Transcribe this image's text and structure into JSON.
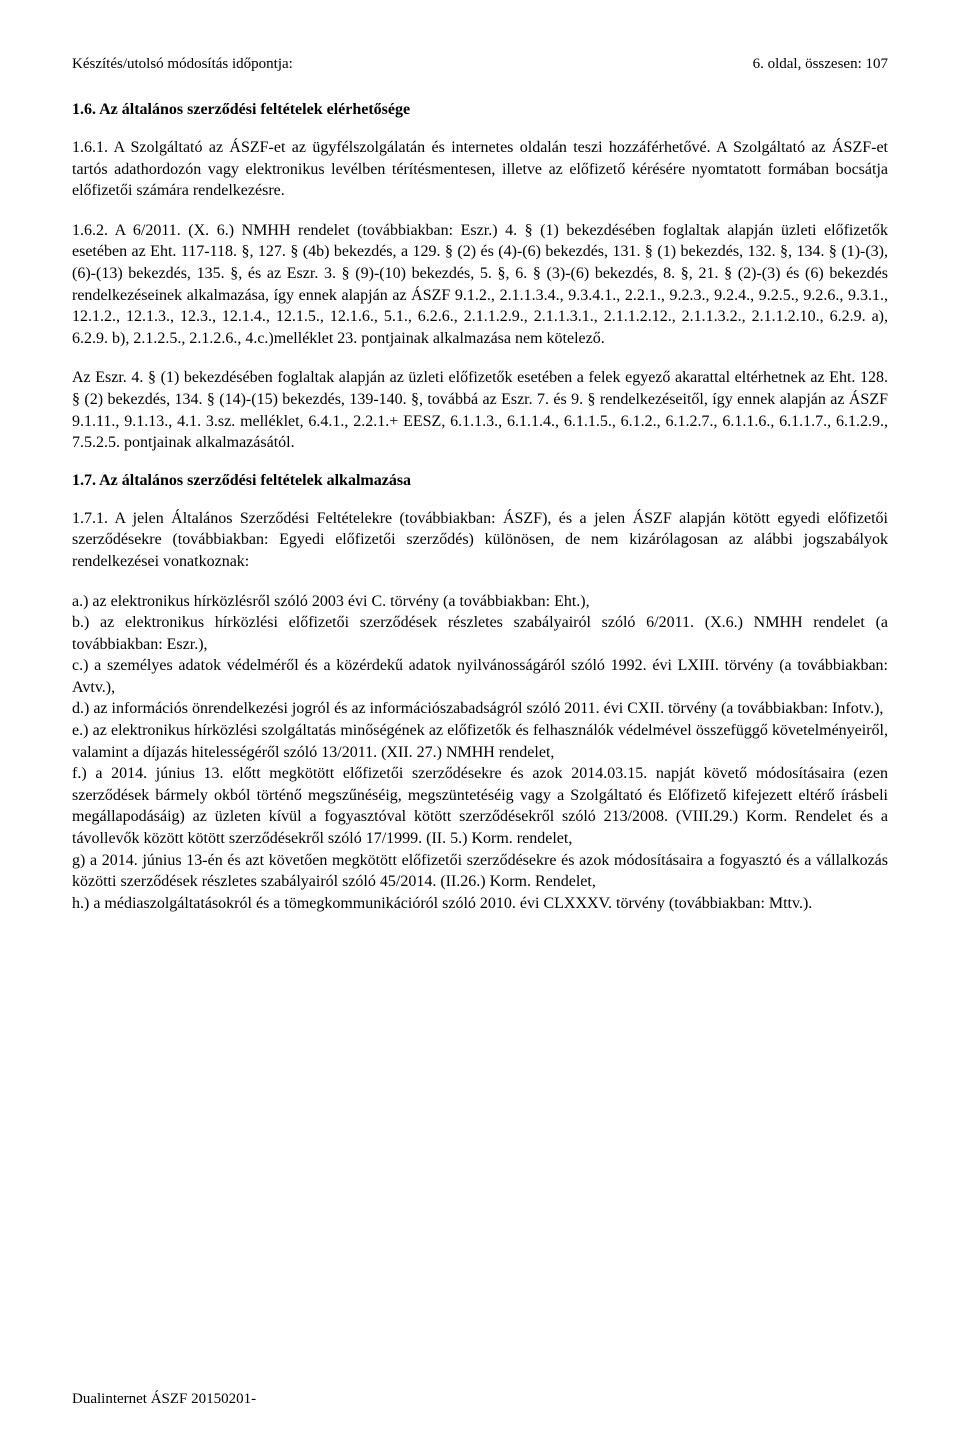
{
  "header": {
    "left": "Készítés/utolsó módosítás időpontja:",
    "right": "6. oldal, összesen: 107"
  },
  "s16": {
    "title": "1.6. Az általános szerződési feltételek elérhetősége",
    "p1": "1.6.1. A Szolgáltató az ÁSZF-et az ügyfélszolgálatán és internetes oldalán teszi hozzáférhetővé. A Szolgáltató az ÁSZF-et tartós adathordozón vagy elektronikus levélben térítésmentesen, illetve az előfizető kérésére nyomtatott formában bocsátja előfizetői számára rendelkezésre.",
    "p2": "1.6.2. A 6/2011. (X. 6.) NMHH rendelet (továbbiakban: Eszr.) 4. § (1) bekezdésében foglaltak alapján üzleti előfizetők esetében az Eht. 117-118. §, 127. § (4b) bekezdés, a 129. § (2) és (4)-(6) bekezdés, 131. § (1) bekezdés, 132. §, 134. § (1)-(3), (6)-(13) bekezdés, 135. §, és az Eszr. 3. § (9)-(10) bekezdés, 5. §, 6. § (3)-(6) bekezdés, 8. §, 21. § (2)-(3) és (6) bekezdés rendelkezéseinek alkalmazása, így ennek alapján az ÁSZF 9.1.2., 2.1.1.3.4., 9.3.4.1., 2.2.1., 9.2.3., 9.2.4., 9.2.5., 9.2.6., 9.3.1., 12.1.2., 12.1.3., 12.3., 12.1.4., 12.1.5., 12.1.6., 5.1., 6.2.6., 2.1.1.2.9., 2.1.1.3.1., 2.1.1.2.12., 2.1.1.3.2., 2.1.1.2.10., 6.2.9. a), 6.2.9. b), 2.1.2.5., 2.1.2.6., 4.c.)melléklet 23. pontjainak alkalmazása  nem kötelező.",
    "p3": "Az Eszr. 4. § (1) bekezdésében foglaltak alapján az üzleti előfizetők esetében a felek egyező akarattal eltérhetnek az Eht. 128. § (2) bekezdés, 134. § (14)-(15) bekezdés, 139-140. §, továbbá az Eszr. 7. és 9. § rendelkezéseitől, így ennek alapján az ÁSZF 9.1.11., 9.1.13., 4.1. 3.sz. melléklet, 6.4.1., 2.2.1.+ EESZ, 6.1.1.3., 6.1.1.4., 6.1.1.5., 6.1.2., 6.1.2.7., 6.1.1.6., 6.1.1.7., 6.1.2.9., 7.5.2.5. pontjainak alkalmazásától."
  },
  "s17": {
    "title": "1.7. Az általános szerződési feltételek alkalmazása",
    "p1": "1.7.1. A jelen Általános Szerződési Feltételekre (továbbiakban: ÁSZF), és a jelen ÁSZF alapján kötött egyedi előfizetői szerződésekre (továbbiakban: Egyedi előfizetői szerződés) különösen, de nem kizárólagosan az alábbi jogszabályok rendelkezései vonatkoznak:",
    "a": "a.) az elektronikus hírközlésről szóló 2003 évi C. törvény (a továbbiakban: Eht.),",
    "b": "b.) az elektronikus hírközlési előfizetői szerződések részletes szabályairól szóló 6/2011. (X.6.) NMHH rendelet (a továbbiakban: Eszr.),",
    "c": "c.) a személyes adatok védelméről és a közérdekű adatok nyilvánosságáról szóló 1992. évi LXIII. törvény (a továbbiakban: Avtv.),",
    "d": "d.) az információs önrendelkezési jogról és az információszabadságról szóló 2011. évi CXII. törvény (a továbbiakban: Infotv.),",
    "e": "e.) az elektronikus hírközlési szolgáltatás minőségének az előfizetők és felhasználók védelmével összefüggő követelményeiről, valamint a díjazás hitelességéről szóló 13/2011. (XII. 27.) NMHH rendelet,",
    "f": "f.) a 2014. június 13. előtt megkötött előfizetői szerződésekre és azok 2014.03.15. napját követő módosításaira (ezen szerződések bármely okból történő megszűnéséig, megszüntetéséig vagy a Szolgáltató és Előfizető kifejezett eltérő írásbeli megállapodásáig) az üzleten kívül a fogyasztóval kötött szerződésekről szóló 213/2008. (VIII.29.) Korm. Rendelet és a távollevők között kötött szerződésekről szóló 17/1999. (II. 5.) Korm. rendelet,",
    "g": "g) a 2014. június 13-én és azt követően megkötött előfizetői szerződésekre és azok módosításaira a fogyasztó és a vállalkozás közötti szerződések részletes szabályairól szóló 45/2014. (II.26.) Korm. Rendelet,",
    "h": "h.) a médiaszolgáltatásokról és a tömegkommunikációról szóló 2010. évi CLXXXV. törvény (továbbiakban: Mttv.)."
  },
  "footer": "Dualinternet ÁSZF 20150201-"
}
